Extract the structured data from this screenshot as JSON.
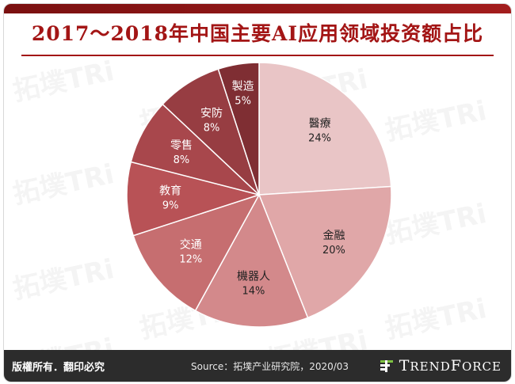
{
  "title": "2017～2018年中国主要AI应用领域投资额占比",
  "watermark": "拓墣TRi",
  "chart_data": {
    "type": "pie",
    "slices": [
      {
        "label": "醫療",
        "value": 24,
        "display": "24%",
        "color": "#e9c5c6"
      },
      {
        "label": "金融",
        "value": 20,
        "display": "20%",
        "color": "#e0a7a8"
      },
      {
        "label": "機器人",
        "value": 14,
        "display": "14%",
        "color": "#d3898b"
      },
      {
        "label": "交通",
        "value": 12,
        "display": "12%",
        "color": "#c66e70"
      },
      {
        "label": "教育",
        "value": 9,
        "display": "9%",
        "color": "#b85256"
      },
      {
        "label": "零售",
        "value": 8,
        "display": "8%",
        "color": "#a8474c"
      },
      {
        "label": "安防",
        "value": 8,
        "display": "8%",
        "color": "#973d42"
      },
      {
        "label": "製造",
        "value": 5,
        "display": "5%",
        "color": "#7f2e33"
      }
    ],
    "start_angle_deg": 0,
    "direction": "clockwise",
    "label_position": "inside"
  },
  "footer": {
    "copyright": "版權所有．翻印必究",
    "source": "Source：拓墣产业研究院，2020/03",
    "brand_initial": "T",
    "brand_rest": "REND",
    "brand_initial2": "F",
    "brand_rest2": "ORCE"
  }
}
